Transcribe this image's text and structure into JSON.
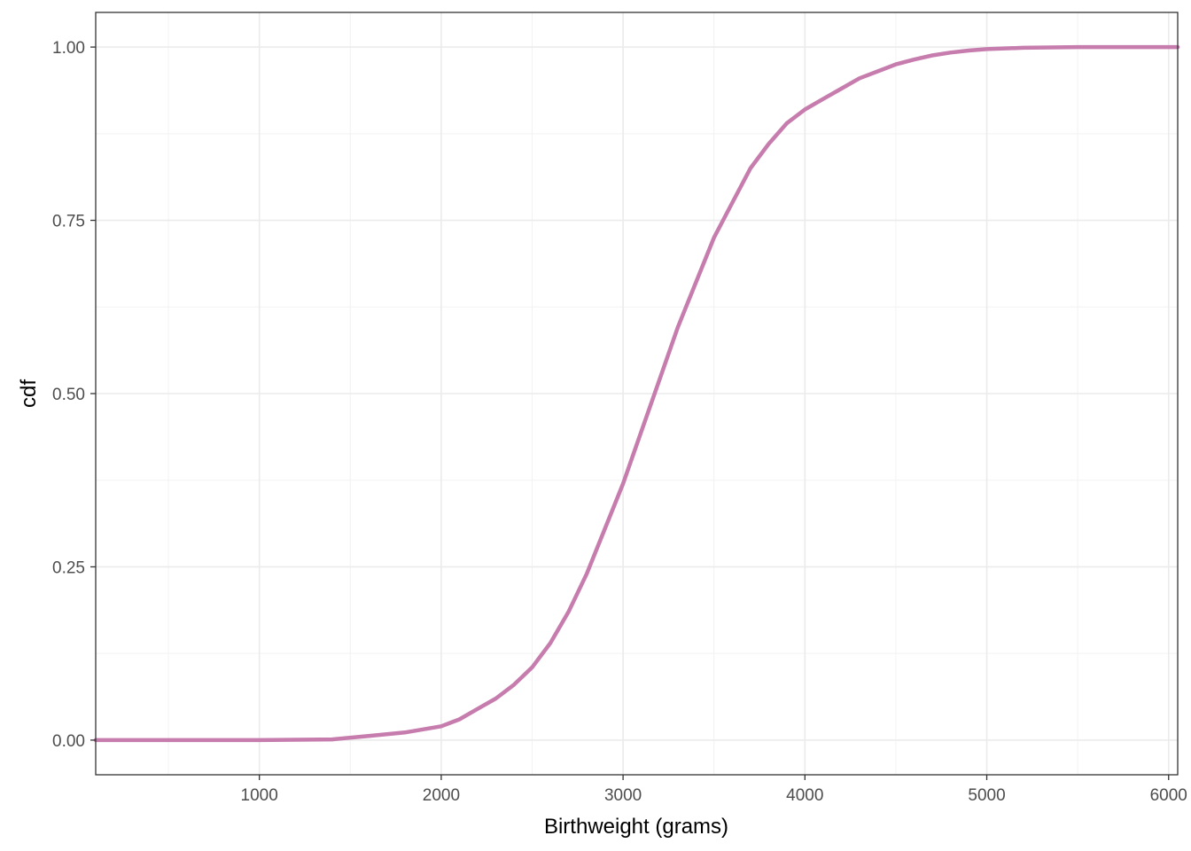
{
  "chart_data": {
    "type": "line",
    "title": "",
    "xlabel": "Birthweight (grams)",
    "ylabel": "cdf",
    "xlim": [
      100,
      6050
    ],
    "ylim": [
      -0.05,
      1.05
    ],
    "x_ticks": [
      1000,
      2000,
      3000,
      4000,
      5000,
      6000
    ],
    "x_tick_labels": [
      "1000",
      "2000",
      "3000",
      "4000",
      "5000",
      "6000"
    ],
    "y_ticks": [
      0,
      0.25,
      0.5,
      0.75,
      1
    ],
    "y_tick_labels": [
      "0.00",
      "0.25",
      "0.50",
      "0.75",
      "1.00"
    ],
    "grid": true,
    "legend": "none",
    "series": [
      {
        "color": "#c77cae",
        "x": [
          100,
          500,
          1000,
          1400,
          1600,
          1800,
          2000,
          2100,
          2200,
          2300,
          2400,
          2500,
          2600,
          2700,
          2800,
          2900,
          3000,
          3100,
          3200,
          3300,
          3400,
          3500,
          3600,
          3700,
          3800,
          3900,
          4000,
          4100,
          4200,
          4300,
          4400,
          4500,
          4600,
          4700,
          4800,
          4900,
          5000,
          5200,
          5500,
          6050
        ],
        "y": [
          0,
          0,
          0,
          0.001,
          0.006,
          0.011,
          0.02,
          0.03,
          0.045,
          0.06,
          0.08,
          0.105,
          0.14,
          0.185,
          0.24,
          0.305,
          0.37,
          0.445,
          0.52,
          0.595,
          0.66,
          0.725,
          0.775,
          0.825,
          0.86,
          0.89,
          0.91,
          0.925,
          0.94,
          0.955,
          0.965,
          0.975,
          0.982,
          0.988,
          0.992,
          0.995,
          0.997,
          0.999,
          1.0,
          1.0
        ]
      }
    ]
  }
}
